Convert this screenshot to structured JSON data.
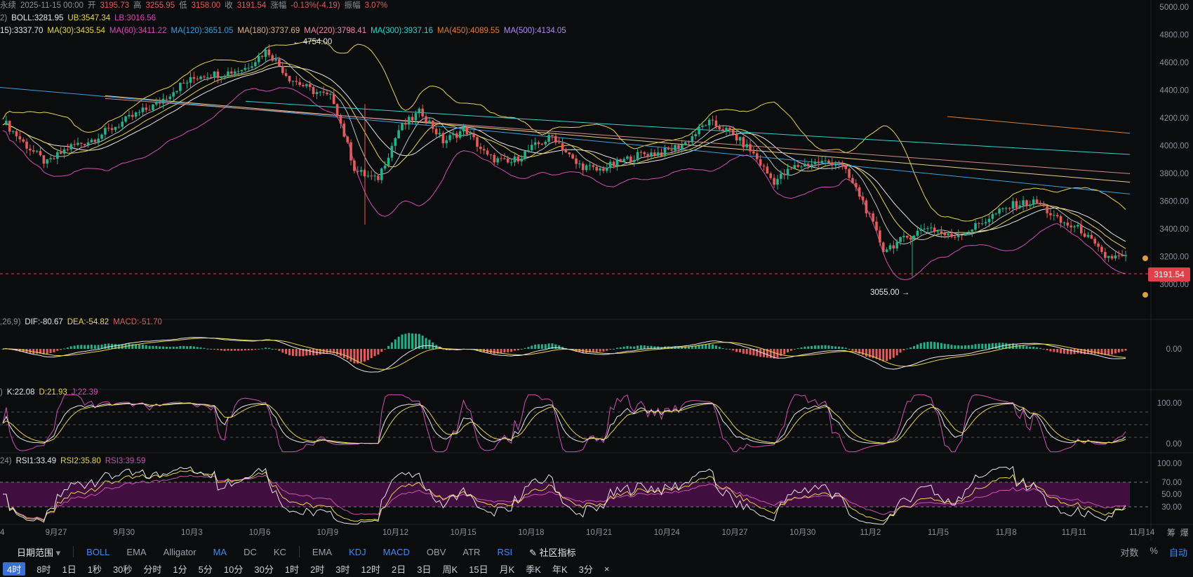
{
  "header": {
    "line1": {
      "label": "永续",
      "date": "2025-11-15 00:00",
      "open_label": "开",
      "open": "3195.73",
      "high_label": "高",
      "high": "3255.95",
      "low_label": "低",
      "low": "3158.00",
      "close_label": "收",
      "close": "3191.54",
      "chg_label": "涨幅",
      "chg": "-0.13%(-4.19)",
      "amp_label": "振幅",
      "amp": "3.07%"
    },
    "line2": {
      "prefix": "2)",
      "boll": "BOLL:3281.95",
      "ub": "UB:3547.34",
      "lb": "LB:3016.56"
    },
    "line3": {
      "ma15": "15):3337.70",
      "ma30": "MA(30):3435.54",
      "ma60": "MA(60):3411.22",
      "ma120": "MA(120):3651.05",
      "ma180": "MA(180):3737.69",
      "ma220": "MA(220):3798.41",
      "ma300": "MA(300):3937.16",
      "ma450": "MA(450):4089.55",
      "ma500": "MA(500):4134.05"
    }
  },
  "macd_header": {
    "prefix": ",26,9)",
    "dif": "DIF:-80.67",
    "dea": "DEA:-54.82",
    "macd": "MACD:-51.70"
  },
  "kdj_header": {
    "prefix": ")",
    "k": "K:22.08",
    "d": "D:21.93",
    "j": "J:22.39"
  },
  "rsi_header": {
    "prefix": "24)",
    "rsi1": "RSI1:33.49",
    "rsi2": "RSI2:35.80",
    "rsi3": "RSI3:39.59"
  },
  "annotations": {
    "high": "← 4754.00",
    "low": "3055.00 →"
  },
  "price_tag": "3191.54",
  "chart_data": {
    "type": "candlestick",
    "price_axis": {
      "ticks": [
        "5000.00",
        "4800.00",
        "4600.00",
        "4400.00",
        "4200.00",
        "4000.00",
        "3800.00",
        "3600.00",
        "3400.00",
        "3200.00",
        "3000.00"
      ],
      "ylim": [
        3000,
        5000
      ]
    },
    "macd_axis": {
      "ticks": [
        "0.00"
      ]
    },
    "kdj_axis": {
      "ticks": [
        "100.00",
        "0.00"
      ]
    },
    "rsi_axis": {
      "ticks": [
        "100.00",
        "70.00",
        "50.00",
        "30.00"
      ]
    },
    "x_ticks": [
      "9月27",
      "9月30",
      "10月3",
      "10月6",
      "10月9",
      "10月12",
      "10月15",
      "10月18",
      "10月21",
      "10月24",
      "10月27",
      "10月30",
      "11月2",
      "11月5",
      "11月8",
      "11月11",
      "11月14"
    ],
    "x_tick_left": "4",
    "close_path": [
      [
        "9月25",
        4180
      ],
      [
        "9月26",
        4010
      ],
      [
        "9月27",
        3870
      ],
      [
        "9月28",
        3990
      ],
      [
        "9月29",
        4040
      ],
      [
        "9月30",
        4130
      ],
      [
        "10月1",
        4220
      ],
      [
        "10月2",
        4300
      ],
      [
        "10月3",
        4430
      ],
      [
        "10月4",
        4510
      ],
      [
        "10月5",
        4520
      ],
      [
        "10月6",
        4560
      ],
      [
        "10月7",
        4690
      ],
      [
        "10月8",
        4490
      ],
      [
        "10月9",
        4400
      ],
      [
        "10月10",
        4340
      ],
      [
        "10月11",
        3820
      ],
      [
        "10月12",
        3750
      ],
      [
        "10月13",
        4120
      ],
      [
        "10月14",
        4250
      ],
      [
        "10月15",
        4030
      ],
      [
        "10月16",
        4120
      ],
      [
        "10月17",
        3920
      ],
      [
        "10月18",
        3870
      ],
      [
        "10月19",
        3980
      ],
      [
        "10月20",
        4070
      ],
      [
        "10月21",
        3870
      ],
      [
        "10月22",
        3820
      ],
      [
        "10月23",
        3880
      ],
      [
        "10月24",
        3940
      ],
      [
        "10月25",
        3950
      ],
      [
        "10月26",
        4020
      ],
      [
        "10月27",
        4170
      ],
      [
        "10月28",
        4100
      ],
      [
        "10月29",
        3960
      ],
      [
        "10月30",
        3740
      ],
      [
        "10月31",
        3850
      ],
      [
        "11月1",
        3880
      ],
      [
        "11月2",
        3880
      ],
      [
        "11月3",
        3620
      ],
      [
        "11月4",
        3250
      ],
      [
        "11月5",
        3330
      ],
      [
        "11月6",
        3420
      ],
      [
        "11月7",
        3340
      ],
      [
        "11月8",
        3400
      ],
      [
        "11月9",
        3500
      ],
      [
        "11月10",
        3580
      ],
      [
        "11月11",
        3590
      ],
      [
        "11月12",
        3450
      ],
      [
        "11月13",
        3390
      ],
      [
        "11月14",
        3200
      ],
      [
        "11月15",
        3191.54
      ]
    ],
    "labels": {
      "high": "4754.00",
      "low": "3055.00",
      "last": "3191.54"
    }
  },
  "toolbar": {
    "row1": {
      "date_range": "日期范围",
      "indicators_main": [
        "BOLL",
        "EMA",
        "Alligator",
        "MA",
        "DC",
        "KC"
      ],
      "indicators_sub": [
        "EMA",
        "KDJ",
        "MACD",
        "OBV",
        "ATR",
        "RSI"
      ],
      "community": "社区指标",
      "right": [
        "对数",
        "%",
        "自动"
      ]
    },
    "row2": {
      "selected": "4时",
      "intervals": [
        "8时",
        "1日",
        "1秒",
        "30秒",
        "分时",
        "1分",
        "5分",
        "10分",
        "30分",
        "1时",
        "2时",
        "3时",
        "12时",
        "2日",
        "3日",
        "周K",
        "15日",
        "月K",
        "季K",
        "年K",
        "3分"
      ],
      "close": "×"
    },
    "side": [
      "筹",
      "爆"
    ]
  },
  "colors": {
    "up": "#26b08a",
    "down": "#e35b5b",
    "boll": "#e8d44d",
    "ma60": "#d04fb5",
    "ma120": "#3aa0e0",
    "ma180": "#e8c98a",
    "ma300": "#2ed3d3",
    "ma450": "#e07c32",
    "ma500": "#c8a0a0"
  }
}
